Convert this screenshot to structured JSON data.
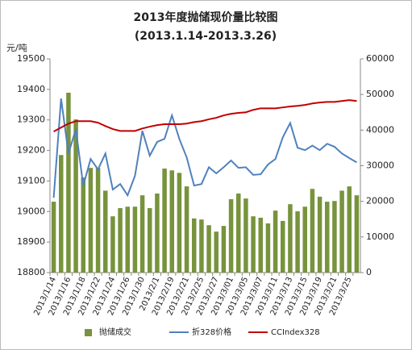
{
  "chart_data": {
    "type": "combo",
    "title": "2013年度抛储现价量比较图",
    "subtitle": "(2013.1.14-2013.3.26)",
    "y_label": "元/吨",
    "categories": [
      "2013/1/14",
      null,
      "2013/1/16",
      null,
      "2013/1/18",
      null,
      "2013/1/22",
      null,
      "2013/1/24",
      null,
      "2013/1/26",
      null,
      "2013/1/30",
      null,
      "2013/2/1",
      null,
      "2013/2/19",
      null,
      "2013/2/21",
      null,
      "2013/2/25",
      null,
      "2013/2/27",
      null,
      "2013/3/01",
      null,
      "2013/3/05",
      null,
      "2013/3/07",
      null,
      "2013/3/11",
      null,
      "2013/3/13",
      null,
      "2013/3/15",
      null,
      "2013/3/19",
      null,
      "2013/3/21",
      null,
      "2013/3/25",
      null
    ],
    "ylim": [
      18800,
      19500
    ],
    "yticks": [
      18800,
      18900,
      19000,
      19100,
      19200,
      19300,
      19400,
      19500
    ],
    "y2lim": [
      0,
      60000
    ],
    "y2ticks": [
      0,
      10000,
      20000,
      30000,
      40000,
      50000,
      60000
    ],
    "grid": false,
    "legend": "bottom",
    "series": [
      {
        "name": "抛储成交",
        "type": "bar",
        "axis": "y2",
        "color": "#77933c",
        "values": [
          19900,
          33000,
          50500,
          43000,
          26700,
          29400,
          29400,
          23000,
          15800,
          18100,
          18500,
          18500,
          21700,
          18100,
          22200,
          29200,
          28700,
          28000,
          24200,
          15200,
          14900,
          13300,
          11500,
          13100,
          20600,
          22200,
          20800,
          15800,
          15400,
          13800,
          17400,
          14500,
          19200,
          17200,
          18500,
          23500,
          21300,
          19900,
          20100,
          23000,
          24200,
          21700
        ]
      },
      {
        "name": "折328价格",
        "type": "line",
        "color": "#4f81bd",
        "values": [
          19045,
          19370,
          19190,
          19270,
          19085,
          19172,
          19138,
          19190,
          19072,
          19090,
          19053,
          19117,
          19264,
          19183,
          19228,
          19238,
          19315,
          19238,
          19177,
          19085,
          19090,
          19145,
          19125,
          19145,
          19167,
          19143,
          19145,
          19120,
          19122,
          19154,
          19172,
          19243,
          19290,
          19209,
          19201,
          19216,
          19201,
          19222,
          19212,
          19190,
          19175,
          19161
        ]
      },
      {
        "name": "CCIndex328",
        "type": "line",
        "color": "#c00000",
        "values": [
          19262,
          19275,
          19288,
          19296,
          19296,
          19296,
          19291,
          19280,
          19270,
          19264,
          19264,
          19264,
          19272,
          19278,
          19283,
          19286,
          19286,
          19286,
          19288,
          19293,
          19296,
          19302,
          19307,
          19315,
          19320,
          19323,
          19325,
          19333,
          19338,
          19338,
          19338,
          19341,
          19344,
          19346,
          19349,
          19354,
          19357,
          19359,
          19359,
          19362,
          19365,
          19362
        ]
      }
    ]
  }
}
